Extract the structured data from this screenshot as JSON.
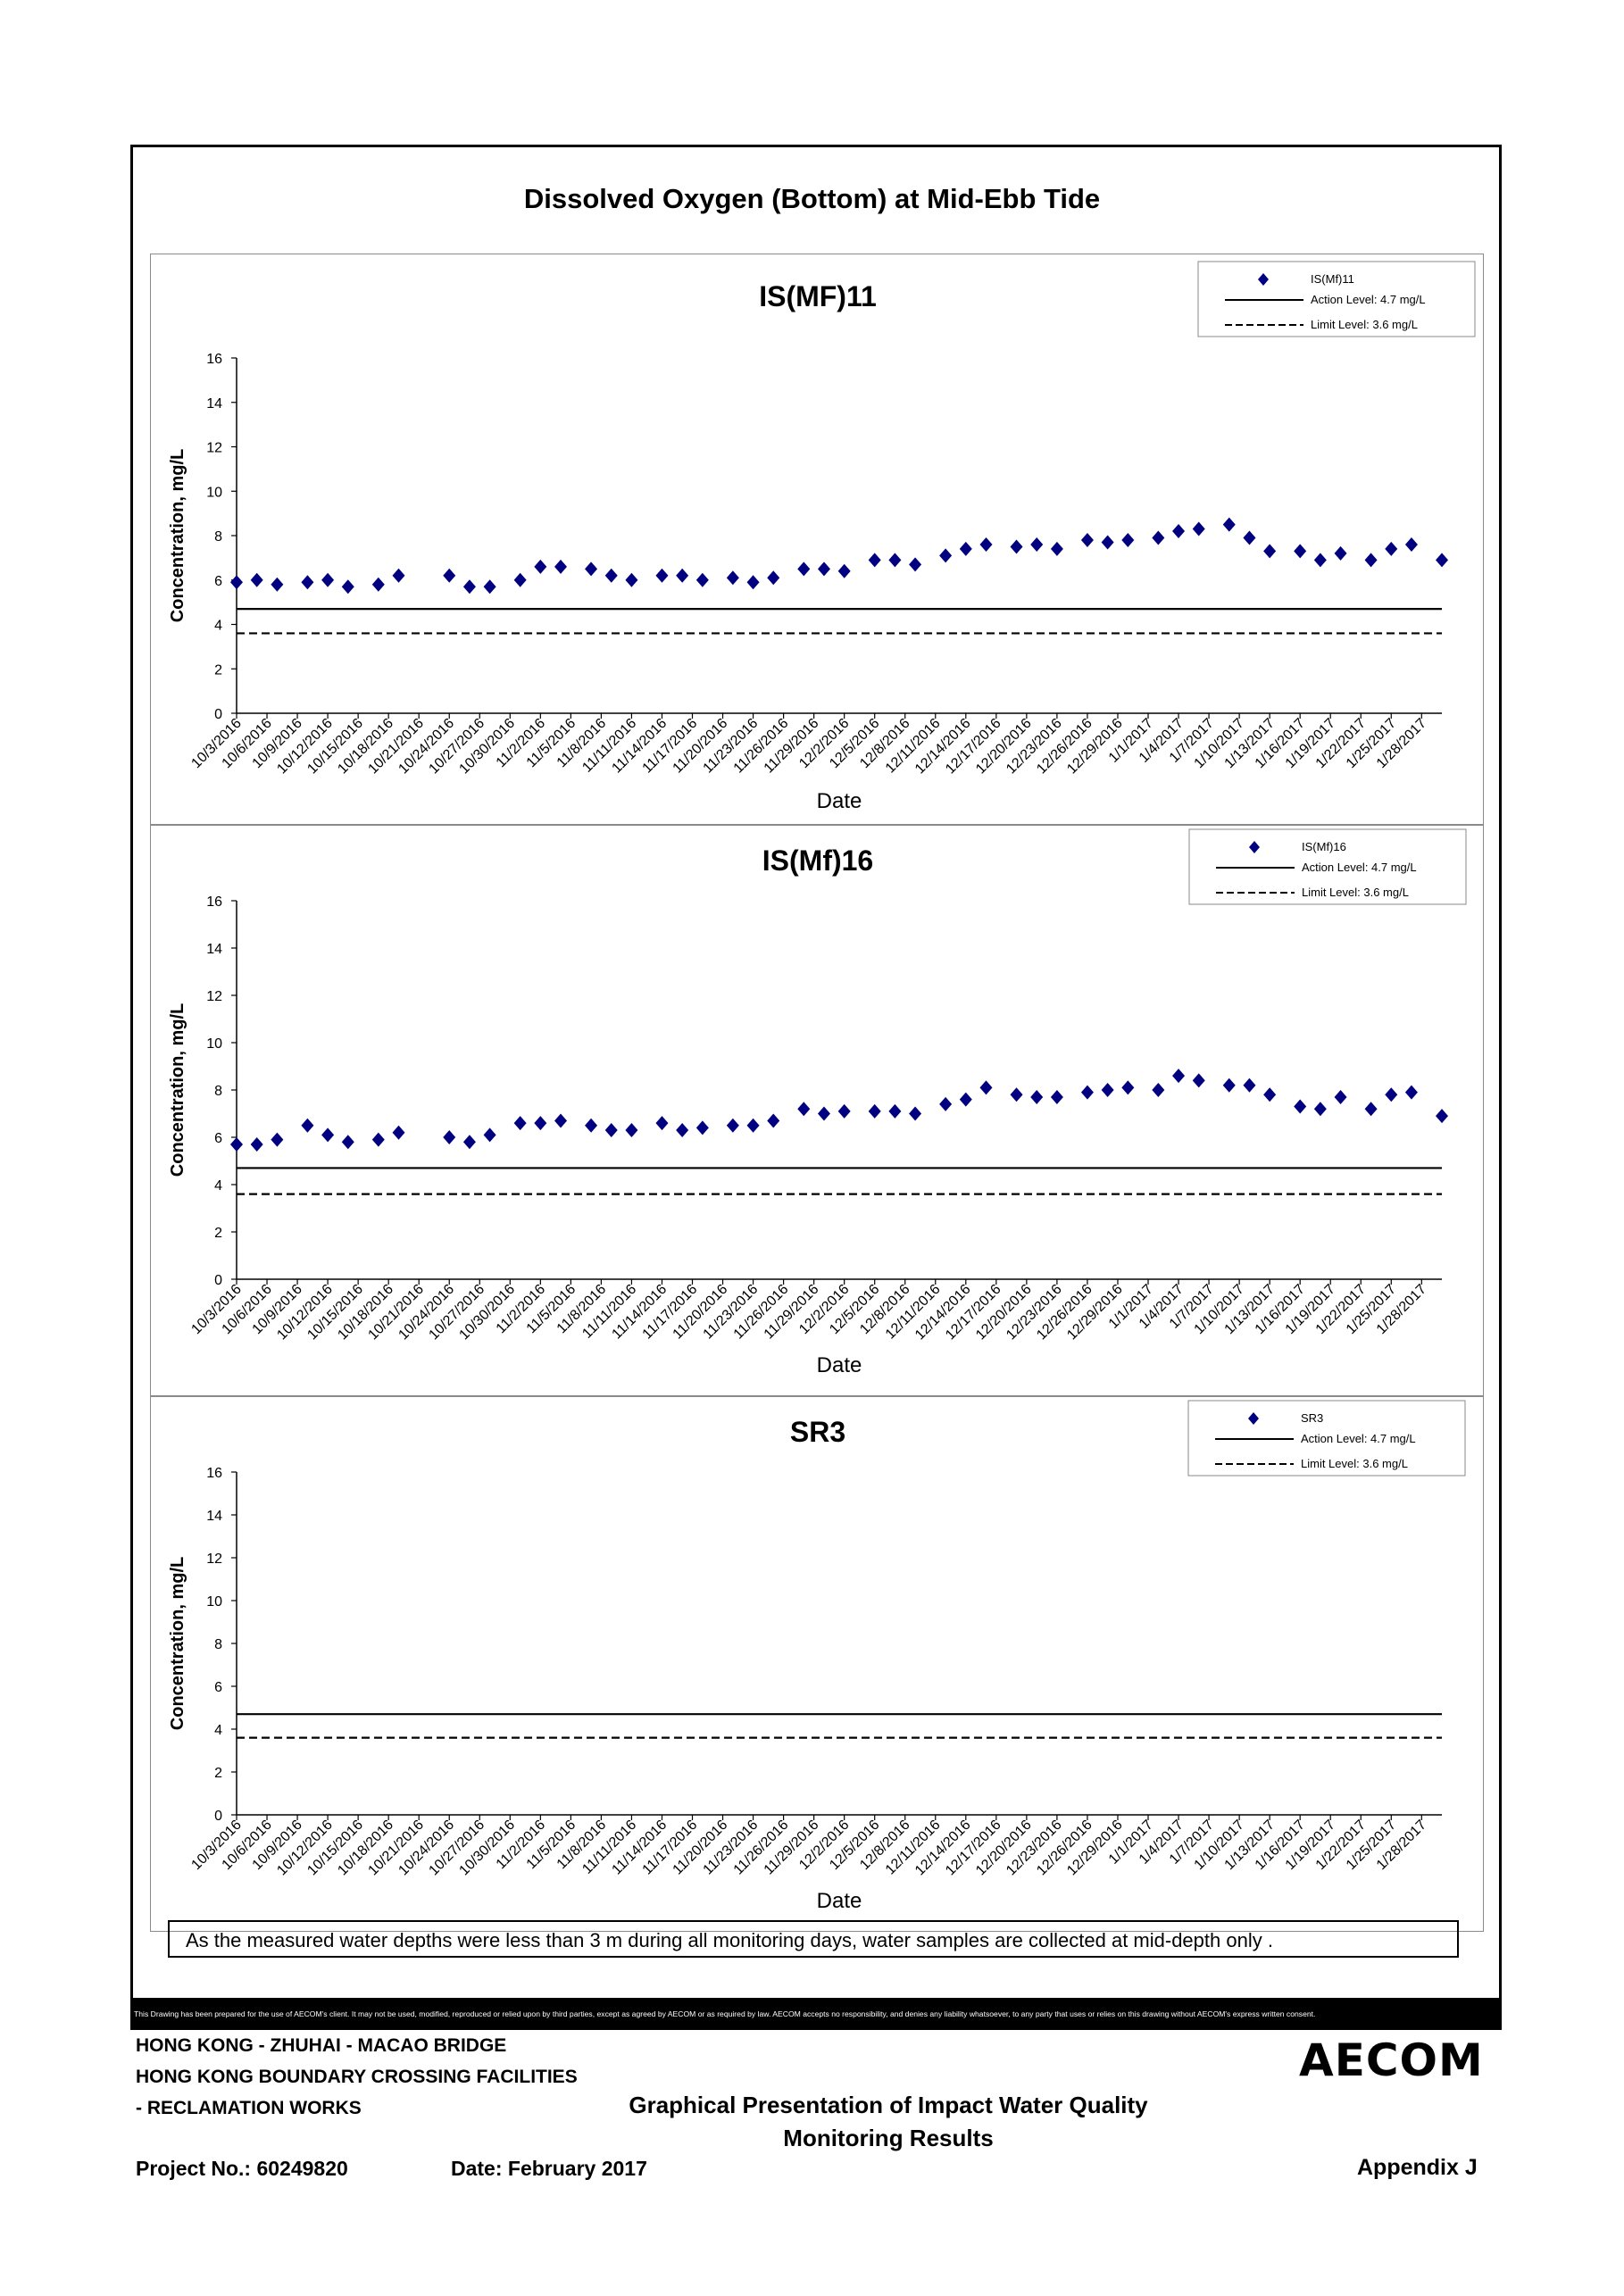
{
  "page": {
    "main_title": "Dissolved Oxygen (Bottom) at Mid-Ebb Tide",
    "note": "As the measured water depths were less than 3 m during all monitoring days, water samples are collected  at mid-depth only .",
    "disclaimer": "This Drawing has been prepared for the use of AECOM's client. It may not be used, modified, reproduced or relied upon by third parties, except as agreed by AECOM or as required by law. AECOM accepts no responsibility, and denies any liability whatsoever, to any party that uses or relies on this drawing without AECOM's express written consent.",
    "project_line1": "HONG KONG - ZHUHAI - MACAO BRIDGE",
    "project_line2": "HONG KONG BOUNDARY CROSSING FACILITIES",
    "project_line3": "- RECLAMATION WORKS",
    "pres_title1": "Graphical Presentation of Impact Water Quality",
    "pres_title2": "Monitoring Results",
    "project_no": "Project No.: 60249820",
    "date": "Date: February 2017",
    "appendix": "Appendix J",
    "logo": "AECOM"
  },
  "colors": {
    "marker": "#000080",
    "line": "#000000"
  },
  "chart_data": [
    {
      "type": "scatter",
      "title": "IS(MF)11",
      "xlabel": "Date",
      "ylabel": "Concentration, mg/L",
      "ylim": [
        0,
        16
      ],
      "yticks": [
        0,
        2,
        4,
        6,
        8,
        10,
        12,
        14,
        16
      ],
      "xlim": [
        "10/3/2016",
        "1/30/2017"
      ],
      "xticks": [
        "10/3/2016",
        "10/6/2016",
        "10/9/2016",
        "10/12/2016",
        "10/15/2016",
        "10/18/2016",
        "10/21/2016",
        "10/24/2016",
        "10/27/2016",
        "10/30/2016",
        "11/2/2016",
        "11/5/2016",
        "11/8/2016",
        "11/11/2016",
        "11/14/2016",
        "11/17/2016",
        "11/20/2016",
        "11/23/2016",
        "11/26/2016",
        "11/29/2016",
        "12/2/2016",
        "12/5/2016",
        "12/8/2016",
        "12/11/2016",
        "12/14/2016",
        "12/17/2016",
        "12/20/2016",
        "12/23/2016",
        "12/26/2016",
        "12/29/2016",
        "1/1/2017",
        "1/4/2017",
        "1/7/2017",
        "1/10/2017",
        "1/13/2017",
        "1/16/2017",
        "1/19/2017",
        "1/22/2017",
        "1/25/2017",
        "1/28/2017"
      ],
      "legend_position": "top-right",
      "legend": {
        "series": "IS(Mf)11",
        "action": "Action Level: 4.7 mg/L",
        "limit": "Limit Level: 3.6 mg/L"
      },
      "action_level": 4.7,
      "limit_level": 3.6,
      "series": [
        {
          "name": "IS(Mf)11",
          "points": [
            [
              "10/3/2016",
              5.9
            ],
            [
              "10/5/2016",
              6.0
            ],
            [
              "10/7/2016",
              5.8
            ],
            [
              "10/10/2016",
              5.9
            ],
            [
              "10/12/2016",
              6.0
            ],
            [
              "10/14/2016",
              5.7
            ],
            [
              "10/17/2016",
              5.8
            ],
            [
              "10/19/2016",
              6.2
            ],
            [
              "10/24/2016",
              6.2
            ],
            [
              "10/26/2016",
              5.7
            ],
            [
              "10/28/2016",
              5.7
            ],
            [
              "10/31/2016",
              6.0
            ],
            [
              "11/2/2016",
              6.6
            ],
            [
              "11/4/2016",
              6.6
            ],
            [
              "11/7/2016",
              6.5
            ],
            [
              "11/9/2016",
              6.2
            ],
            [
              "11/11/2016",
              6.0
            ],
            [
              "11/14/2016",
              6.2
            ],
            [
              "11/16/2016",
              6.2
            ],
            [
              "11/18/2016",
              6.0
            ],
            [
              "11/21/2016",
              6.1
            ],
            [
              "11/23/2016",
              5.9
            ],
            [
              "11/25/2016",
              6.1
            ],
            [
              "11/28/2016",
              6.5
            ],
            [
              "11/30/2016",
              6.5
            ],
            [
              "12/2/2016",
              6.4
            ],
            [
              "12/5/2016",
              6.9
            ],
            [
              "12/7/2016",
              6.9
            ],
            [
              "12/9/2016",
              6.7
            ],
            [
              "12/12/2016",
              7.1
            ],
            [
              "12/14/2016",
              7.4
            ],
            [
              "12/16/2016",
              7.6
            ],
            [
              "12/19/2016",
              7.5
            ],
            [
              "12/21/2016",
              7.6
            ],
            [
              "12/23/2016",
              7.4
            ],
            [
              "12/26/2016",
              7.8
            ],
            [
              "12/28/2016",
              7.7
            ],
            [
              "12/30/2016",
              7.8
            ],
            [
              "1/2/2017",
              7.9
            ],
            [
              "1/4/2017",
              8.2
            ],
            [
              "1/6/2017",
              8.3
            ],
            [
              "1/9/2017",
              8.5
            ],
            [
              "1/11/2017",
              7.9
            ],
            [
              "1/13/2017",
              7.3
            ],
            [
              "1/16/2017",
              7.3
            ],
            [
              "1/18/2017",
              6.9
            ],
            [
              "1/20/2017",
              7.2
            ],
            [
              "1/23/2017",
              6.9
            ],
            [
              "1/25/2017",
              7.4
            ],
            [
              "1/27/2017",
              7.6
            ],
            [
              "1/30/2017",
              6.9
            ]
          ]
        }
      ]
    },
    {
      "type": "scatter",
      "title": "IS(Mf)16",
      "xlabel": "Date",
      "ylabel": "Concentration, mg/L",
      "ylim": [
        0,
        16
      ],
      "yticks": [
        0,
        2,
        4,
        6,
        8,
        10,
        12,
        14,
        16
      ],
      "xlim": [
        "10/3/2016",
        "1/30/2017"
      ],
      "xticks": [
        "10/3/2016",
        "10/6/2016",
        "10/9/2016",
        "10/12/2016",
        "10/15/2016",
        "10/18/2016",
        "10/21/2016",
        "10/24/2016",
        "10/27/2016",
        "10/30/2016",
        "11/2/2016",
        "11/5/2016",
        "11/8/2016",
        "11/11/2016",
        "11/14/2016",
        "11/17/2016",
        "11/20/2016",
        "11/23/2016",
        "11/26/2016",
        "11/29/2016",
        "12/2/2016",
        "12/5/2016",
        "12/8/2016",
        "12/11/2016",
        "12/14/2016",
        "12/17/2016",
        "12/20/2016",
        "12/23/2016",
        "12/26/2016",
        "12/29/2016",
        "1/1/2017",
        "1/4/2017",
        "1/7/2017",
        "1/10/2017",
        "1/13/2017",
        "1/16/2017",
        "1/19/2017",
        "1/22/2017",
        "1/25/2017",
        "1/28/2017"
      ],
      "legend_position": "top-right",
      "legend": {
        "series": "IS(Mf)16",
        "action": "Action Level: 4.7 mg/L",
        "limit": "Limit Level: 3.6 mg/L"
      },
      "action_level": 4.7,
      "limit_level": 3.6,
      "series": [
        {
          "name": "IS(Mf)16",
          "points": [
            [
              "10/3/2016",
              5.7
            ],
            [
              "10/5/2016",
              5.7
            ],
            [
              "10/7/2016",
              5.9
            ],
            [
              "10/10/2016",
              6.5
            ],
            [
              "10/12/2016",
              6.1
            ],
            [
              "10/14/2016",
              5.8
            ],
            [
              "10/17/2016",
              5.9
            ],
            [
              "10/19/2016",
              6.2
            ],
            [
              "10/24/2016",
              6.0
            ],
            [
              "10/26/2016",
              5.8
            ],
            [
              "10/28/2016",
              6.1
            ],
            [
              "10/31/2016",
              6.6
            ],
            [
              "11/2/2016",
              6.6
            ],
            [
              "11/4/2016",
              6.7
            ],
            [
              "11/7/2016",
              6.5
            ],
            [
              "11/9/2016",
              6.3
            ],
            [
              "11/11/2016",
              6.3
            ],
            [
              "11/14/2016",
              6.6
            ],
            [
              "11/16/2016",
              6.3
            ],
            [
              "11/18/2016",
              6.4
            ],
            [
              "11/21/2016",
              6.5
            ],
            [
              "11/23/2016",
              6.5
            ],
            [
              "11/25/2016",
              6.7
            ],
            [
              "11/28/2016",
              7.2
            ],
            [
              "11/30/2016",
              7.0
            ],
            [
              "12/2/2016",
              7.1
            ],
            [
              "12/5/2016",
              7.1
            ],
            [
              "12/7/2016",
              7.1
            ],
            [
              "12/9/2016",
              7.0
            ],
            [
              "12/12/2016",
              7.4
            ],
            [
              "12/14/2016",
              7.6
            ],
            [
              "12/16/2016",
              8.1
            ],
            [
              "12/19/2016",
              7.8
            ],
            [
              "12/21/2016",
              7.7
            ],
            [
              "12/23/2016",
              7.7
            ],
            [
              "12/26/2016",
              7.9
            ],
            [
              "12/28/2016",
              8.0
            ],
            [
              "12/30/2016",
              8.1
            ],
            [
              "1/2/2017",
              8.0
            ],
            [
              "1/4/2017",
              8.6
            ],
            [
              "1/6/2017",
              8.4
            ],
            [
              "1/9/2017",
              8.2
            ],
            [
              "1/11/2017",
              8.2
            ],
            [
              "1/13/2017",
              7.8
            ],
            [
              "1/16/2017",
              7.3
            ],
            [
              "1/18/2017",
              7.2
            ],
            [
              "1/20/2017",
              7.7
            ],
            [
              "1/23/2017",
              7.2
            ],
            [
              "1/25/2017",
              7.8
            ],
            [
              "1/27/2017",
              7.9
            ],
            [
              "1/30/2017",
              6.9
            ]
          ]
        }
      ]
    },
    {
      "type": "scatter",
      "title": "SR3",
      "xlabel": "Date",
      "ylabel": "Concentration, mg/L",
      "ylim": [
        0,
        16
      ],
      "yticks": [
        0,
        2,
        4,
        6,
        8,
        10,
        12,
        14,
        16
      ],
      "xlim": [
        "10/3/2016",
        "1/30/2017"
      ],
      "xticks": [
        "10/3/2016",
        "10/6/2016",
        "10/9/2016",
        "10/12/2016",
        "10/15/2016",
        "10/18/2016",
        "10/21/2016",
        "10/24/2016",
        "10/27/2016",
        "10/30/2016",
        "11/2/2016",
        "11/5/2016",
        "11/8/2016",
        "11/11/2016",
        "11/14/2016",
        "11/17/2016",
        "11/20/2016",
        "11/23/2016",
        "11/26/2016",
        "11/29/2016",
        "12/2/2016",
        "12/5/2016",
        "12/8/2016",
        "12/11/2016",
        "12/14/2016",
        "12/17/2016",
        "12/20/2016",
        "12/23/2016",
        "12/26/2016",
        "12/29/2016",
        "1/1/2017",
        "1/4/2017",
        "1/7/2017",
        "1/10/2017",
        "1/13/2017",
        "1/16/2017",
        "1/19/2017",
        "1/22/2017",
        "1/25/2017",
        "1/28/2017"
      ],
      "legend_position": "top-right",
      "legend": {
        "series": "SR3",
        "action": "Action Level: 4.7 mg/L",
        "limit": "Limit Level: 3.6 mg/L"
      },
      "action_level": 4.7,
      "limit_level": 3.6,
      "series": [
        {
          "name": "SR3",
          "points": []
        }
      ]
    }
  ]
}
